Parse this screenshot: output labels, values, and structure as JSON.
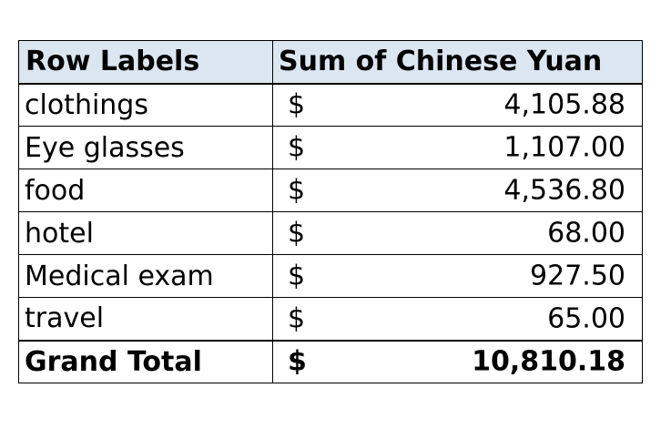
{
  "pivot": {
    "headers": {
      "row_labels": "Row Labels",
      "sum_label": "Sum of Chinese Yuan"
    },
    "currency_symbol": "$",
    "rows": [
      {
        "label": "clothings",
        "value": "4,105.88"
      },
      {
        "label": "Eye glasses",
        "value": "1,107.00"
      },
      {
        "label": "food",
        "value": "4,536.80"
      },
      {
        "label": "hotel",
        "value": "68.00"
      },
      {
        "label": "Medical exam",
        "value": "927.50"
      },
      {
        "label": "travel",
        "value": "65.00"
      }
    ],
    "total": {
      "label": "Grand Total",
      "value": "10,810.18"
    },
    "colors": {
      "header_fill": "#dce6f1",
      "border": "#000000"
    }
  }
}
